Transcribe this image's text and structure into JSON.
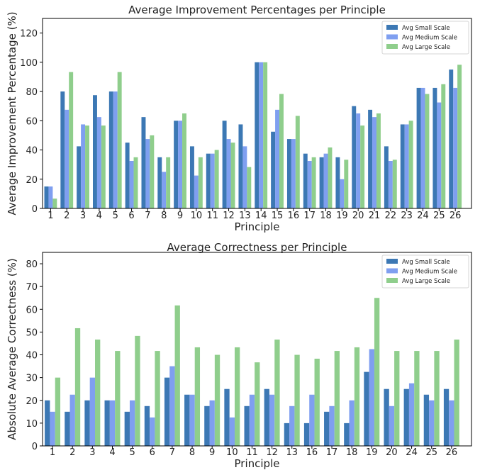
{
  "chart_data": [
    {
      "type": "bar",
      "title": "Average Improvement Percentages per Principle",
      "xlabel": "Principle",
      "ylabel": "Average Improvement Percentage (%)",
      "ylim": [
        0,
        130
      ],
      "yticks": [
        0,
        20,
        40,
        60,
        80,
        100,
        120
      ],
      "legend_position": "top-right",
      "categories": [
        "1",
        "2",
        "3",
        "4",
        "5",
        "6",
        "7",
        "8",
        "9",
        "10",
        "11",
        "12",
        "13",
        "14",
        "15",
        "16",
        "17",
        "18",
        "19",
        "20",
        "21",
        "22",
        "23",
        "24",
        "25",
        "26"
      ],
      "series": [
        {
          "name": "Avg Small Scale",
          "color": "#3c78b4",
          "values": [
            15,
            80,
            42.5,
            77.5,
            80,
            45,
            62.5,
            35,
            60,
            42.5,
            37.5,
            60,
            57.5,
            100,
            52.5,
            47.5,
            37.5,
            35,
            35,
            70,
            67.5,
            42.5,
            57.5,
            82.5,
            82.5,
            95
          ]
        },
        {
          "name": "Avg Medium Scale",
          "color": "#7f9ff0",
          "values": [
            15,
            67.5,
            57.5,
            62.5,
            80,
            32.5,
            47.5,
            25,
            60,
            22.5,
            37.5,
            47.5,
            42.5,
            100,
            67.5,
            47.5,
            32.5,
            37.5,
            20,
            65,
            62.5,
            32.5,
            57.5,
            82.5,
            72.5,
            82.5
          ]
        },
        {
          "name": "Avg Large Scale",
          "color": "#8fce8c",
          "values": [
            6.7,
            93.3,
            56.7,
            56.7,
            93.3,
            35,
            50,
            35,
            65,
            35,
            40,
            45,
            28.3,
            100,
            78.3,
            63.3,
            35,
            41.7,
            33.3,
            56.7,
            65,
            33.3,
            60,
            78.3,
            85,
            98.3
          ]
        }
      ]
    },
    {
      "type": "bar",
      "title": "Average Correctness per Principle",
      "xlabel": "Principle",
      "ylabel": "Absolute Average Correctness (%)",
      "ylim": [
        0,
        85
      ],
      "yticks": [
        0,
        10,
        20,
        30,
        40,
        50,
        60,
        70,
        80
      ],
      "legend_position": "top-right",
      "categories": [
        "1",
        "2",
        "3",
        "4",
        "5",
        "6",
        "7",
        "8",
        "9",
        "10",
        "11",
        "12",
        "13",
        "16",
        "17",
        "18",
        "19",
        "20",
        "24",
        "25",
        "26"
      ],
      "series": [
        {
          "name": "Avg Small Scale",
          "color": "#3c78b4",
          "values": [
            20,
            15,
            20,
            20,
            15,
            17.5,
            30,
            22.5,
            17.5,
            25,
            17.5,
            25,
            10,
            10,
            15,
            10,
            32.5,
            25,
            25,
            22.5,
            25
          ]
        },
        {
          "name": "Avg Medium Scale",
          "color": "#7f9ff0",
          "values": [
            15,
            22.5,
            30,
            20,
            20,
            12.5,
            35,
            22.5,
            20,
            12.5,
            22.5,
            22.5,
            17.5,
            22.5,
            17.5,
            20,
            42.5,
            17.5,
            27.5,
            20,
            20
          ]
        },
        {
          "name": "Avg Large Scale",
          "color": "#8fce8c",
          "values": [
            30,
            51.7,
            46.7,
            41.7,
            48.3,
            41.7,
            61.7,
            43.3,
            40,
            43.3,
            36.7,
            46.7,
            40,
            38.3,
            41.7,
            43.3,
            65,
            41.7,
            41.7,
            41.7,
            46.7
          ]
        }
      ]
    }
  ]
}
